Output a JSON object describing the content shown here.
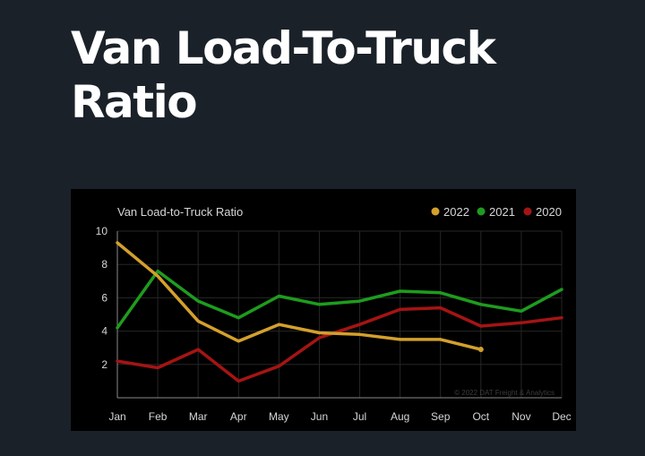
{
  "page": {
    "heading": "Van Load-To-Truck Ratio"
  },
  "chart_data": {
    "type": "line",
    "title": "Van Load-to-Truck Ratio",
    "categories": [
      "Jan",
      "Feb",
      "Mar",
      "Apr",
      "May",
      "Jun",
      "Jul",
      "Aug",
      "Sep",
      "Oct",
      "Nov",
      "Dec"
    ],
    "ylim": [
      0,
      10
    ],
    "yticks": [
      2,
      4,
      6,
      8,
      10
    ],
    "grid": true,
    "legend_position": "top-right",
    "series": [
      {
        "name": "2022",
        "color": "#d4a02c",
        "values": [
          9.3,
          7.3,
          4.6,
          3.4,
          4.4,
          3.9,
          3.8,
          3.5,
          3.5,
          2.9,
          null,
          null
        ]
      },
      {
        "name": "2021",
        "color": "#1e9c1e",
        "values": [
          4.2,
          7.6,
          5.8,
          4.8,
          6.1,
          5.6,
          5.8,
          6.4,
          6.3,
          5.6,
          5.2,
          6.5
        ]
      },
      {
        "name": "2020",
        "color": "#a51414",
        "values": [
          2.2,
          1.8,
          2.9,
          1.0,
          1.9,
          3.6,
          4.4,
          5.3,
          5.4,
          4.3,
          4.5,
          4.8
        ]
      }
    ],
    "credit": "© 2022 DAT Freight & Analytics"
  }
}
